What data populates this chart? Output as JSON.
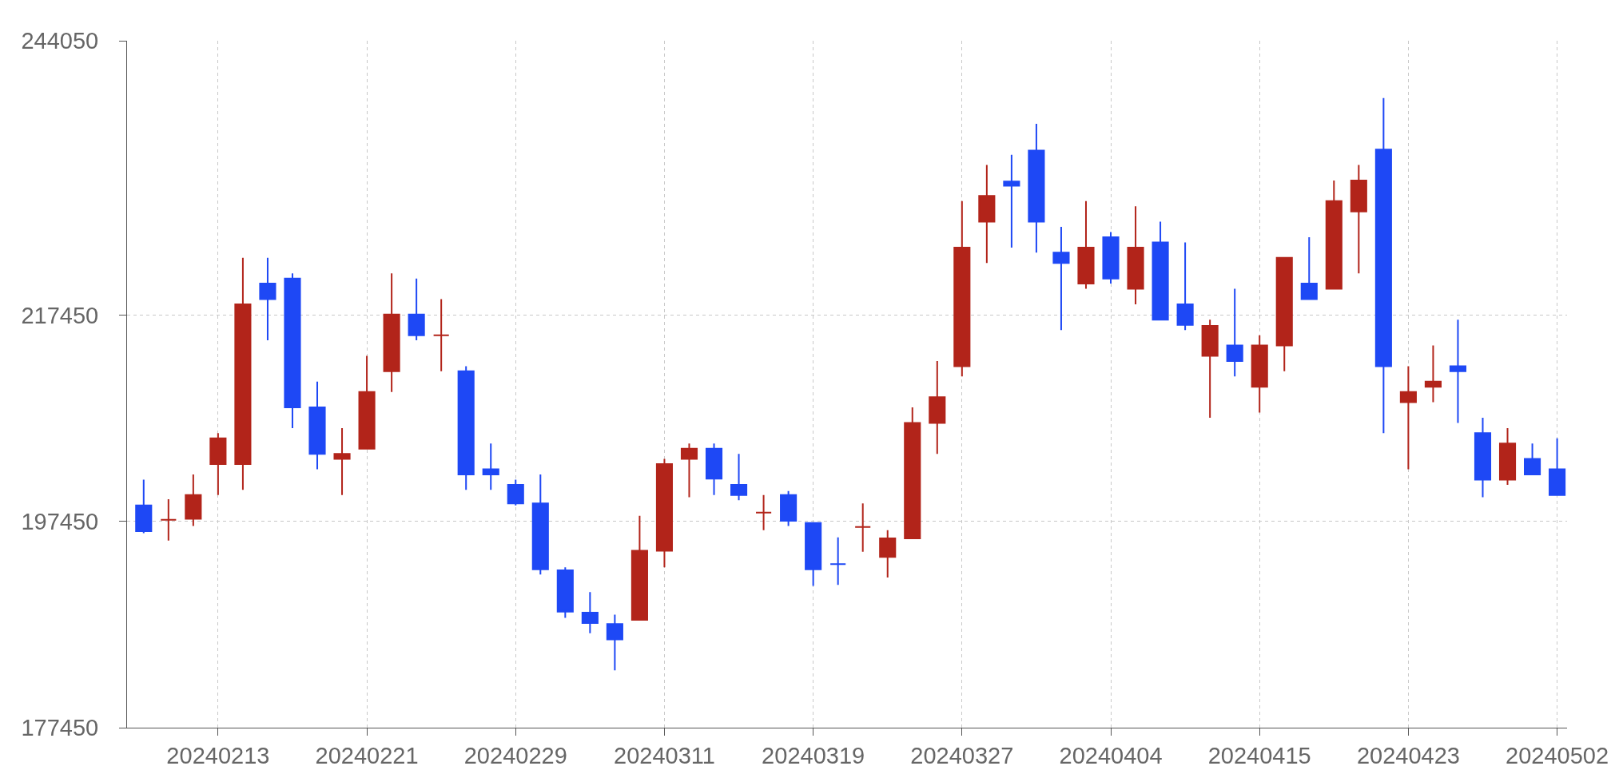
{
  "chart_data": {
    "type": "candlestick",
    "categories": [
      null,
      null,
      null,
      "20240213",
      null,
      null,
      null,
      null,
      null,
      "20240221",
      null,
      null,
      null,
      null,
      null,
      "20240229",
      null,
      null,
      null,
      null,
      null,
      "20240311",
      null,
      null,
      null,
      null,
      null,
      "20240319",
      null,
      null,
      null,
      null,
      null,
      "20240327",
      null,
      null,
      null,
      null,
      null,
      "20240404",
      null,
      null,
      null,
      null,
      null,
      "20240415",
      null,
      null,
      null,
      null,
      null,
      "20240423",
      null,
      null,
      null,
      null,
      null,
      "20240502"
    ],
    "ohlc": [
      [
        199000,
        201500,
        196300,
        196500
      ],
      [
        197600,
        199600,
        195600,
        197600
      ],
      [
        197700,
        202000,
        197000,
        200000
      ],
      [
        203000,
        206000,
        200000,
        205500
      ],
      [
        203000,
        223000,
        200500,
        218500
      ],
      [
        220500,
        223000,
        215000,
        219000
      ],
      [
        221000,
        221500,
        206500,
        208500
      ],
      [
        208500,
        211000,
        202500,
        204000
      ],
      [
        203500,
        206500,
        200000,
        204000
      ],
      [
        204500,
        213500,
        204500,
        210000
      ],
      [
        212000,
        221500,
        210000,
        217500
      ],
      [
        217500,
        221000,
        215000,
        215500
      ],
      [
        215500,
        219000,
        212000,
        215500
      ],
      [
        212000,
        212500,
        200500,
        202000
      ],
      [
        202500,
        205000,
        200500,
        202000
      ],
      [
        201000,
        201500,
        199000,
        199200
      ],
      [
        199200,
        202000,
        192300,
        192800
      ],
      [
        192700,
        193000,
        188100,
        188700
      ],
      [
        188600,
        190600,
        186600,
        187600
      ],
      [
        187500,
        188400,
        183000,
        186000
      ],
      [
        187900,
        198000,
        187900,
        194600
      ],
      [
        194600,
        203500,
        193000,
        203000
      ],
      [
        203500,
        205000,
        199800,
        204500
      ],
      [
        204500,
        205000,
        200000,
        201600
      ],
      [
        201000,
        204000,
        199500,
        200000
      ],
      [
        198300,
        200000,
        196600,
        198300
      ],
      [
        200000,
        200400,
        197000,
        197500
      ],
      [
        197300,
        197300,
        191200,
        192800
      ],
      [
        193300,
        195900,
        191300,
        193300
      ],
      [
        196900,
        199200,
        194500,
        196900
      ],
      [
        194000,
        196600,
        192000,
        195800
      ],
      [
        195800,
        208500,
        195800,
        207000
      ],
      [
        207000,
        213000,
        204000,
        209500
      ],
      [
        212500,
        228500,
        211500,
        224000
      ],
      [
        226500,
        232000,
        222500,
        229000
      ],
      [
        230400,
        233000,
        224000,
        230000
      ],
      [
        233400,
        236000,
        223500,
        226500
      ],
      [
        223500,
        226000,
        216000,
        222500
      ],
      [
        220500,
        228500,
        220000,
        224000
      ],
      [
        225000,
        225500,
        220500,
        221000
      ],
      [
        220000,
        228000,
        218500,
        224000
      ],
      [
        224500,
        226500,
        217000,
        217000
      ],
      [
        218500,
        224500,
        216000,
        216500
      ],
      [
        213500,
        217000,
        207500,
        216400
      ],
      [
        214500,
        220000,
        211500,
        213000
      ],
      [
        210500,
        215500,
        208000,
        214500
      ],
      [
        214500,
        223000,
        212000,
        223000
      ],
      [
        220500,
        225000,
        219000,
        219000
      ],
      [
        220000,
        230500,
        220000,
        228500
      ],
      [
        227500,
        232000,
        221500,
        230500
      ],
      [
        233500,
        238500,
        206000,
        212500
      ],
      [
        209000,
        212500,
        202500,
        210000
      ],
      [
        210500,
        214500,
        209000,
        211000
      ],
      [
        212500,
        217000,
        207000,
        212000
      ],
      [
        206000,
        207500,
        199800,
        201500
      ],
      [
        201500,
        206500,
        201000,
        205000
      ],
      [
        203500,
        205000,
        202000,
        202000
      ],
      [
        202500,
        205500,
        200000,
        200000
      ]
    ],
    "colors": [
      "#1e48f5",
      "#b2241a",
      "#b2241a",
      "#b2241a",
      "#b2241a",
      "#1e48f5",
      "#1e48f5",
      "#1e48f5",
      "#b2241a",
      "#b2241a",
      "#b2241a",
      "#1e48f5",
      "#b2241a",
      "#1e48f5",
      "#1e48f5",
      "#1e48f5",
      "#1e48f5",
      "#1e48f5",
      "#1e48f5",
      "#1e48f5",
      "#b2241a",
      "#b2241a",
      "#b2241a",
      "#1e48f5",
      "#1e48f5",
      "#b2241a",
      "#1e48f5",
      "#1e48f5",
      "#1e48f5",
      "#b2241a",
      "#b2241a",
      "#b2241a",
      "#b2241a",
      "#b2241a",
      "#b2241a",
      "#1e48f5",
      "#1e48f5",
      "#1e48f5",
      "#b2241a",
      "#1e48f5",
      "#b2241a",
      "#1e48f5",
      "#1e48f5",
      "#b2241a",
      "#1e48f5",
      "#b2241a",
      "#b2241a",
      "#1e48f5",
      "#b2241a",
      "#b2241a",
      "#1e48f5",
      "#b2241a",
      "#b2241a",
      "#1e48f5",
      "#1e48f5",
      "#b2241a",
      "#1e48f5",
      "#1e48f5"
    ],
    "ylim": [
      177450,
      244050
    ],
    "yticks": [
      177450,
      197450,
      217450,
      244050
    ],
    "grid": true
  }
}
